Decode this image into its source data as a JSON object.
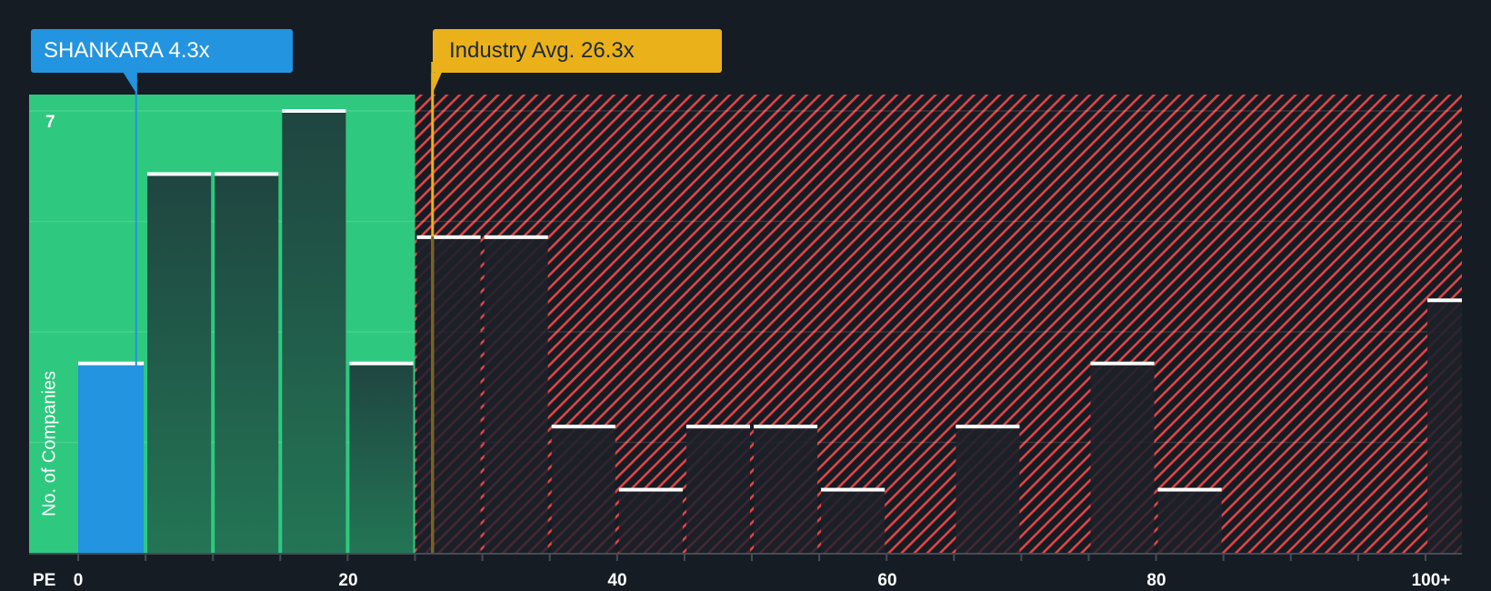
{
  "callouts": {
    "company": {
      "label": "SHANKARA 4.3x",
      "value": 4.3,
      "color": "#2394df"
    },
    "industry": {
      "label": "Industry Avg. 26.3x",
      "value": 26.3,
      "color": "#ebb11a"
    }
  },
  "axes": {
    "x_title": "PE",
    "y_title": "No. of Companies",
    "y_max_tick_label": "7",
    "x_tick_labels": [
      "0",
      "20",
      "40",
      "60",
      "80",
      "100+"
    ]
  },
  "colors": {
    "background": "#161c24",
    "undervalued_zone": "#2ec97f",
    "overvalued_hatch": "#e04545",
    "bar_green_zone": "#1f4a3f",
    "bar_company": "#2394df",
    "bar_top_line": "#ffffff",
    "grid": "#ffffff"
  },
  "chart_data": {
    "type": "bar",
    "title": "",
    "xlabel": "PE",
    "ylabel": "No. of Companies",
    "ylim": [
      0,
      7
    ],
    "xlim": [
      0,
      102.5
    ],
    "bin_width": 5,
    "categories": [
      "0-5",
      "5-10",
      "10-15",
      "15-20",
      "20-25",
      "25-30",
      "30-35",
      "35-40",
      "40-45",
      "45-50",
      "50-55",
      "55-60",
      "60-65",
      "65-70",
      "70-75",
      "75-80",
      "80-85",
      "85-90",
      "90-95",
      "95-100",
      "100+"
    ],
    "bin_starts": [
      0,
      5,
      10,
      15,
      20,
      25,
      30,
      35,
      40,
      45,
      50,
      55,
      60,
      65,
      70,
      75,
      80,
      85,
      90,
      95,
      100
    ],
    "values": [
      3,
      6,
      6,
      7,
      3,
      5,
      5,
      2,
      1,
      2,
      2,
      1,
      0,
      2,
      0,
      3,
      1,
      0,
      0,
      0,
      4
    ],
    "highlighted_bin": "0-5",
    "company_value": 4.3,
    "industry_average": 26.3,
    "x_ticks": [
      0,
      20,
      40,
      60,
      80,
      100
    ],
    "y_ticks": [
      7
    ],
    "grid": true,
    "zones": [
      {
        "name": "below-industry-average",
        "from": 0,
        "to": 25,
        "color": "#2ec97f"
      },
      {
        "name": "above-industry-average",
        "from": 25,
        "to": 102.5,
        "pattern": "diagonal-hatch",
        "color": "#e04545"
      }
    ],
    "legend": null
  }
}
